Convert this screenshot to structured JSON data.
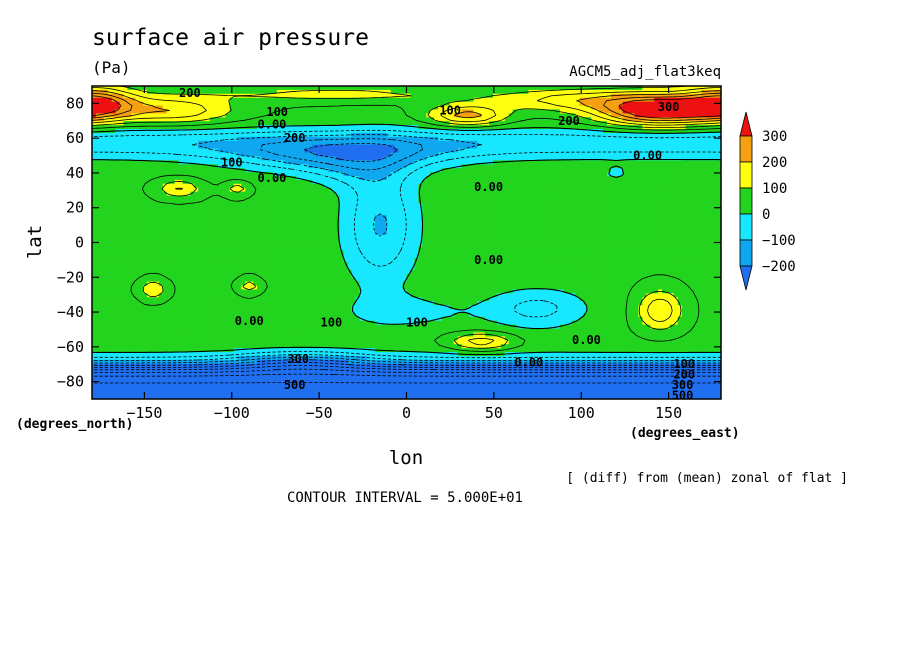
{
  "chart_data": {
    "type": "heatmap",
    "title": "surface air pressure",
    "units": "(Pa)",
    "subtitle": "AGCM5_adj_flat3keq",
    "xlabel": "lon",
    "ylabel": "lat",
    "x_units": "(degrees_east)",
    "y_units": "(degrees_north)",
    "xlim": [
      -180,
      180
    ],
    "ylim": [
      -90,
      90
    ],
    "x_ticks": [
      -150,
      -100,
      -50,
      0,
      50,
      100,
      150
    ],
    "y_ticks": [
      -80,
      -60,
      -40,
      -20,
      0,
      20,
      40,
      60,
      80
    ],
    "contour_interval_label": "CONTOUR INTERVAL = 5.000E+01",
    "note": "[ (diff) from (mean) zonal of flat ]",
    "colorbar": {
      "levels": [
        -200,
        -100,
        0,
        100,
        200,
        300
      ],
      "labels": [
        "300",
        "200",
        "100",
        "0",
        "−100",
        "−200"
      ],
      "colors": [
        "#1f6ff0",
        "#0fa8f0",
        "#18e8ff",
        "#22d41e",
        "#ffff10",
        "#f5a011",
        "#ee1111"
      ]
    },
    "contour_labels": [
      {
        "text": "200",
        "lon": -124,
        "lat": 86
      },
      {
        "text": "100",
        "lon": -74,
        "lat": 75
      },
      {
        "text": "0.00",
        "lon": -77,
        "lat": 68
      },
      {
        "text": "200",
        "lon": -64,
        "lat": 60
      },
      {
        "text": "100",
        "lon": 25,
        "lat": 76
      },
      {
        "text": "300",
        "lon": 150,
        "lat": 78
      },
      {
        "text": "200",
        "lon": 93,
        "lat": 70
      },
      {
        "text": "0.00",
        "lon": 138,
        "lat": 50
      },
      {
        "text": "100",
        "lon": -100,
        "lat": 46
      },
      {
        "text": "0.00",
        "lon": -77,
        "lat": 37
      },
      {
        "text": "0.00",
        "lon": 47,
        "lat": 32
      },
      {
        "text": "0.00",
        "lon": 47,
        "lat": -10
      },
      {
        "text": "0.00",
        "lon": -90,
        "lat": -45
      },
      {
        "text": "100",
        "lon": -43,
        "lat": -46
      },
      {
        "text": "100",
        "lon": 6,
        "lat": -46
      },
      {
        "text": "0.00",
        "lon": 103,
        "lat": -56
      },
      {
        "text": "0.00",
        "lon": 70,
        "lat": -69
      },
      {
        "text": "100",
        "lon": 159,
        "lat": -70
      },
      {
        "text": "300",
        "lon": -62,
        "lat": -67
      },
      {
        "text": "200",
        "lon": 159,
        "lat": -76
      },
      {
        "text": "300",
        "lon": 158,
        "lat": -82
      },
      {
        "text": "500",
        "lon": -64,
        "lat": -82
      },
      {
        "text": "500",
        "lon": 158,
        "lat": -88
      }
    ]
  }
}
